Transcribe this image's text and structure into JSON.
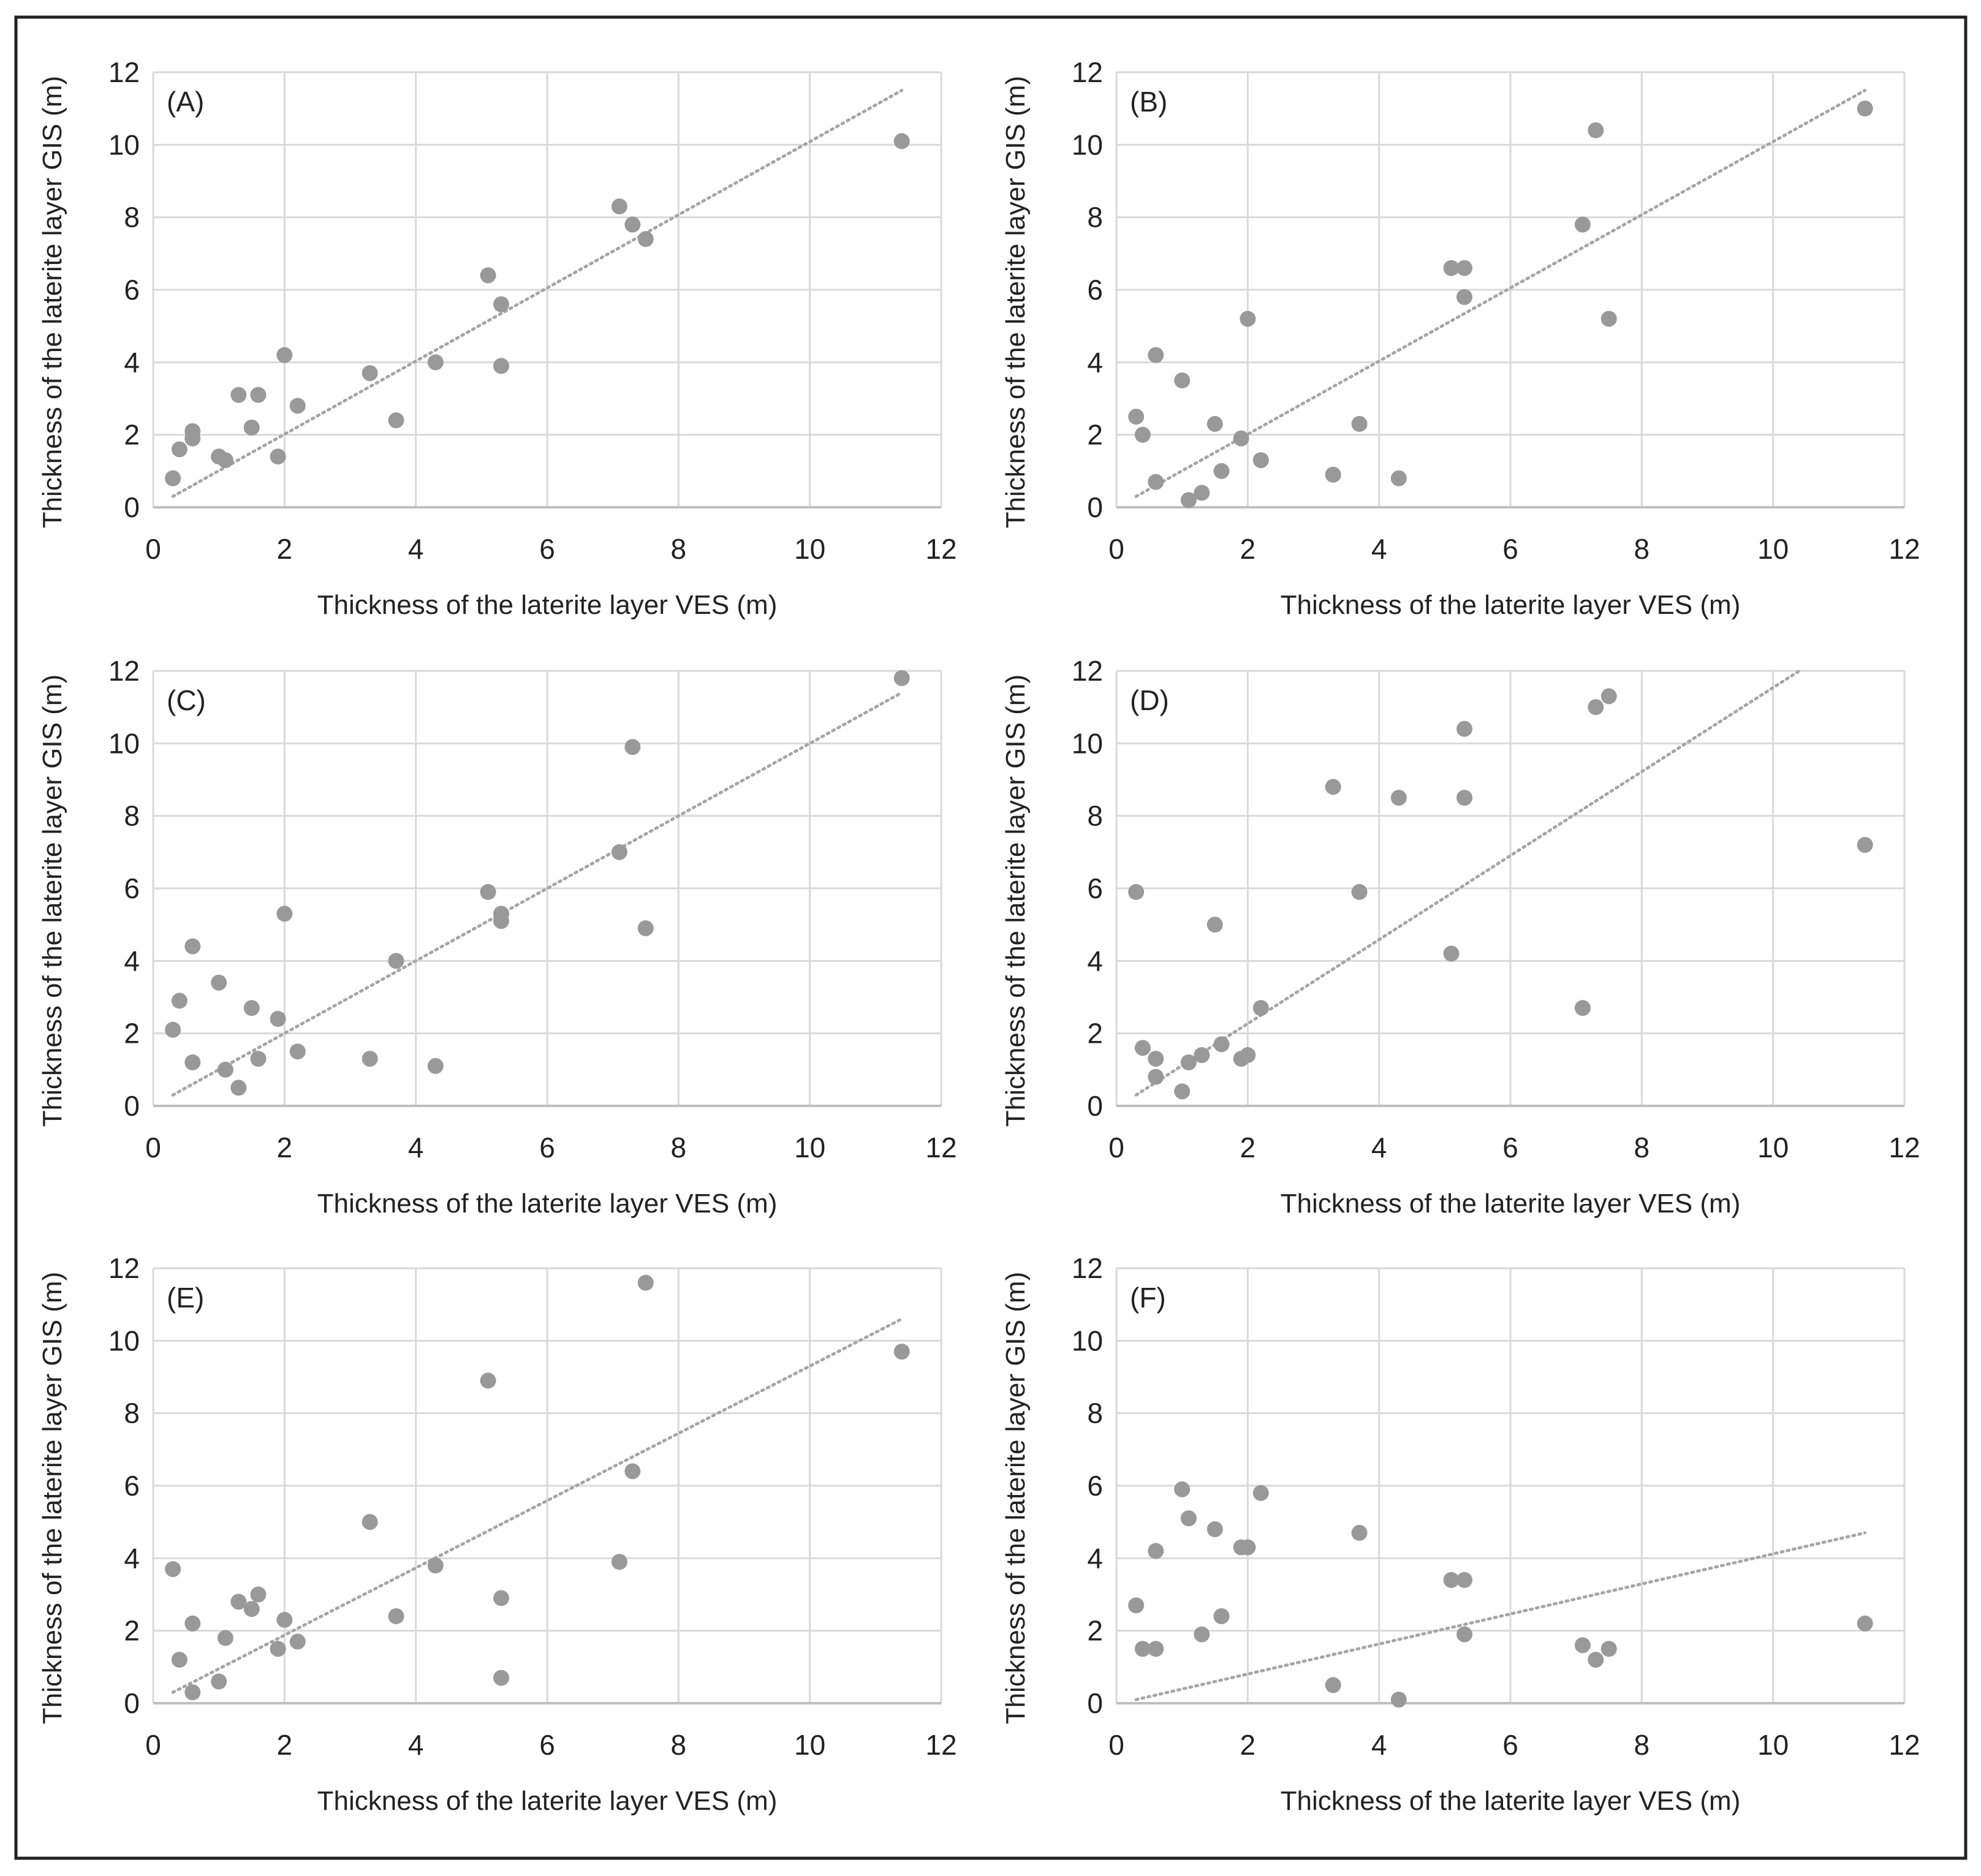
{
  "figure": {
    "style": {
      "point_color": "#999999",
      "grid_color": "#d9d9d9",
      "axis_color": "#bfbfbf",
      "trend_color": "#a6a6a6",
      "frame_color": "#222222",
      "text_color": "#222222"
    }
  },
  "chart_data": [
    {
      "type": "scatter",
      "panel": "(A)",
      "xlabel": "Thickness of the laterite layer VES (m)",
      "ylabel": "Thickness of the laterite layer GIS (m)",
      "xlim": [
        0,
        12
      ],
      "ylim": [
        0,
        12
      ],
      "xticks": [
        "0",
        "2",
        "4",
        "6",
        "8",
        "10",
        "12"
      ],
      "yticks": [
        "0",
        "2",
        "4",
        "6",
        "8",
        "10",
        "12"
      ],
      "grid": true,
      "trendline": {
        "type": "linear",
        "x0": 0.3,
        "y0": 0.3,
        "x1": 11.4,
        "y1": 11.5
      },
      "x": [
        0.3,
        0.4,
        0.6,
        0.6,
        1.0,
        1.1,
        1.3,
        1.5,
        1.6,
        1.9,
        2.0,
        2.2,
        3.3,
        3.7,
        4.3,
        5.1,
        5.3,
        5.3,
        7.1,
        7.3,
        7.5,
        11.4
      ],
      "y": [
        0.8,
        1.6,
        2.1,
        1.9,
        1.4,
        1.3,
        3.1,
        2.2,
        3.1,
        1.4,
        4.2,
        2.8,
        3.7,
        2.4,
        4.0,
        6.4,
        5.6,
        3.9,
        8.3,
        7.8,
        7.4,
        10.1
      ]
    },
    {
      "type": "scatter",
      "panel": "(B)",
      "xlabel": "Thickness of the laterite layer VES (m)",
      "ylabel": "Thickness of the laterite layer GIS (m)",
      "xlim": [
        0,
        12
      ],
      "ylim": [
        0,
        12
      ],
      "xticks": [
        "0",
        "2",
        "4",
        "6",
        "8",
        "10",
        "12"
      ],
      "yticks": [
        "0",
        "2",
        "4",
        "6",
        "8",
        "10",
        "12"
      ],
      "grid": true,
      "trendline": {
        "type": "linear",
        "x0": 0.3,
        "y0": 0.3,
        "x1": 11.4,
        "y1": 11.5
      },
      "x": [
        0.3,
        0.4,
        0.6,
        0.6,
        1.0,
        1.1,
        1.3,
        1.5,
        1.6,
        1.9,
        2.0,
        2.2,
        3.3,
        3.7,
        4.3,
        5.1,
        5.3,
        5.3,
        7.1,
        7.3,
        7.5,
        11.4
      ],
      "y": [
        2.5,
        2.0,
        4.2,
        0.7,
        3.5,
        0.2,
        0.4,
        2.3,
        1.0,
        1.9,
        5.2,
        1.3,
        0.9,
        2.3,
        0.8,
        6.6,
        6.6,
        5.8,
        7.8,
        10.4,
        5.2,
        11.0
      ]
    },
    {
      "type": "scatter",
      "panel": "(C)",
      "xlabel": "Thickness of the laterite layer VES (m)",
      "ylabel": "Thickness of the laterite layer GIS (m)",
      "xlim": [
        0,
        12
      ],
      "ylim": [
        0,
        12
      ],
      "xticks": [
        "0",
        "2",
        "4",
        "6",
        "8",
        "10",
        "12"
      ],
      "yticks": [
        "0",
        "2",
        "4",
        "6",
        "8",
        "10",
        "12"
      ],
      "grid": true,
      "trendline": {
        "type": "linear",
        "x0": 0.3,
        "y0": 0.3,
        "x1": 11.4,
        "y1": 11.4
      },
      "x": [
        0.3,
        0.4,
        0.6,
        0.6,
        1.0,
        1.1,
        1.3,
        1.5,
        1.6,
        1.9,
        2.0,
        2.2,
        3.3,
        3.7,
        4.3,
        5.1,
        5.3,
        5.3,
        7.1,
        7.3,
        7.5,
        11.4
      ],
      "y": [
        2.1,
        2.9,
        4.4,
        1.2,
        3.4,
        1.0,
        0.5,
        2.7,
        1.3,
        2.4,
        5.3,
        1.5,
        1.3,
        4.0,
        1.1,
        5.9,
        5.3,
        5.1,
        7.0,
        9.9,
        4.9,
        11.8
      ]
    },
    {
      "type": "scatter",
      "panel": "(D)",
      "xlabel": "Thickness of the laterite layer VES (m)",
      "ylabel": "Thickness of the laterite layer GIS (m)",
      "xlim": [
        0,
        12
      ],
      "ylim": [
        0,
        12
      ],
      "xticks": [
        "0",
        "2",
        "4",
        "6",
        "8",
        "10",
        "12"
      ],
      "yticks": [
        "0",
        "2",
        "4",
        "6",
        "8",
        "10",
        "12"
      ],
      "grid": true,
      "trendline": {
        "type": "linear",
        "x0": 0.3,
        "y0": 0.3,
        "x1": 10.4,
        "y1": 12.0
      },
      "x": [
        0.3,
        0.4,
        0.6,
        0.6,
        1.0,
        1.1,
        1.3,
        1.5,
        1.6,
        1.9,
        2.0,
        2.2,
        3.3,
        3.7,
        4.3,
        5.1,
        5.3,
        5.3,
        7.1,
        7.3,
        7.5,
        11.4
      ],
      "y": [
        5.9,
        1.6,
        1.3,
        0.8,
        0.4,
        1.2,
        1.4,
        5.0,
        1.7,
        1.3,
        1.4,
        2.7,
        8.8,
        5.9,
        8.5,
        4.2,
        10.4,
        8.5,
        2.7,
        11.0,
        11.3,
        7.2
      ]
    },
    {
      "type": "scatter",
      "panel": "(E)",
      "xlabel": "Thickness of the laterite layer VES (m)",
      "ylabel": "Thickness of the laterite layer GIS (m)",
      "xlim": [
        0,
        12
      ],
      "ylim": [
        0,
        12
      ],
      "xticks": [
        "0",
        "2",
        "4",
        "6",
        "8",
        "10",
        "12"
      ],
      "yticks": [
        "0",
        "2",
        "4",
        "6",
        "8",
        "10",
        "12"
      ],
      "grid": true,
      "trendline": {
        "type": "linear",
        "x0": 0.3,
        "y0": 0.3,
        "x1": 11.4,
        "y1": 10.6
      },
      "x": [
        0.3,
        0.4,
        0.6,
        0.6,
        1.0,
        1.1,
        1.3,
        1.5,
        1.6,
        1.9,
        2.0,
        2.2,
        3.3,
        3.7,
        4.3,
        5.1,
        5.3,
        5.3,
        7.1,
        7.3,
        7.5,
        11.4
      ],
      "y": [
        3.7,
        1.2,
        2.2,
        0.3,
        0.6,
        1.8,
        2.8,
        2.6,
        3.0,
        1.5,
        2.3,
        1.7,
        5.0,
        2.4,
        3.8,
        8.9,
        2.9,
        0.7,
        3.9,
        6.4,
        11.6,
        9.7
      ]
    },
    {
      "type": "scatter",
      "panel": "(F)",
      "xlabel": "Thickness of the laterite layer VES (m)",
      "ylabel": "Thickness of the laterite layer GIS (m)",
      "xlim": [
        0,
        12
      ],
      "ylim": [
        0,
        12
      ],
      "xticks": [
        "0",
        "2",
        "4",
        "6",
        "8",
        "10",
        "12"
      ],
      "yticks": [
        "0",
        "2",
        "4",
        "6",
        "8",
        "10",
        "12"
      ],
      "grid": true,
      "trendline": {
        "type": "linear",
        "x0": 0.3,
        "y0": 0.1,
        "x1": 11.4,
        "y1": 4.7
      },
      "x": [
        0.3,
        0.4,
        0.6,
        0.6,
        1.0,
        1.1,
        1.3,
        1.5,
        1.6,
        1.9,
        2.0,
        2.2,
        3.3,
        3.7,
        4.3,
        5.1,
        5.3,
        5.3,
        7.1,
        7.3,
        7.5,
        11.4
      ],
      "y": [
        2.7,
        1.5,
        4.2,
        1.5,
        5.9,
        5.1,
        1.9,
        4.8,
        2.4,
        4.3,
        4.3,
        5.8,
        0.5,
        4.7,
        0.1,
        3.4,
        3.4,
        1.9,
        1.6,
        1.2,
        1.5,
        2.2
      ]
    }
  ]
}
